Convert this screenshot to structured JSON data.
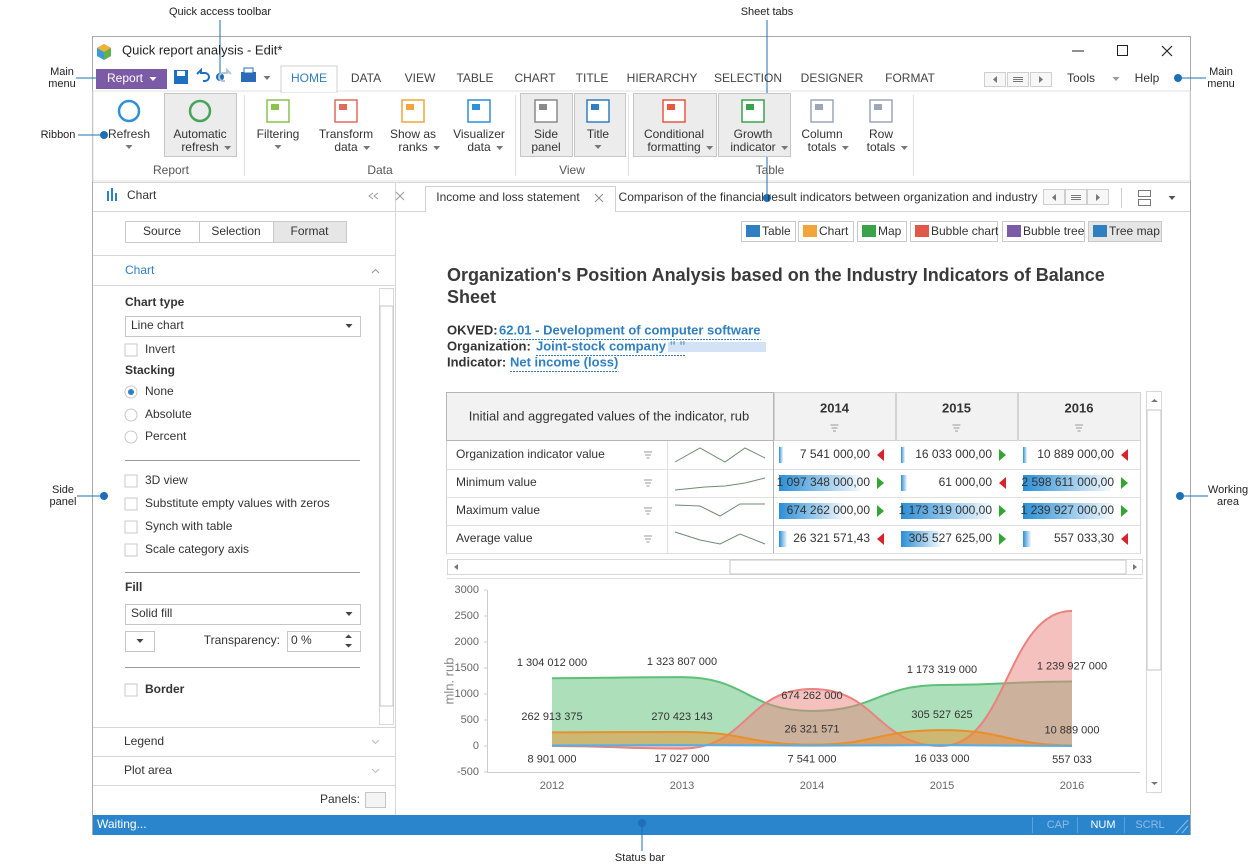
{
  "annotations": [
    {
      "label": [
        "Quick access toolbar"
      ]
    },
    {
      "label": [
        "Sheet tabs"
      ]
    },
    {
      "label": [
        "Main",
        "menu"
      ]
    },
    {
      "label": [
        "Main",
        "menu"
      ]
    },
    {
      "label": [
        "Ribbon"
      ]
    },
    {
      "label": [
        "Side",
        "panel"
      ]
    },
    {
      "label": [
        "Working",
        "area"
      ]
    },
    {
      "label": [
        "Status bar"
      ]
    }
  ],
  "window": {
    "title": "Quick report analysis - Edit*"
  },
  "menu": {
    "main": "Report",
    "tabs": [
      "HOME",
      "DATA",
      "VIEW",
      "TABLE",
      "CHART",
      "TITLE",
      "HIERARCHY",
      "SELECTION",
      "DESIGNER",
      "FORMAT"
    ],
    "tools": "Tools",
    "help": "Help"
  },
  "ribbon": {
    "groups": [
      {
        "label": "Report",
        "buttons": [
          [
            "Refresh"
          ],
          [
            "Automatic",
            "refresh"
          ]
        ]
      },
      {
        "label": "Data",
        "buttons": [
          [
            "Filtering"
          ],
          [
            "Transform",
            "data"
          ],
          [
            "Show as",
            "ranks"
          ],
          [
            "Visualizer",
            "data"
          ]
        ]
      },
      {
        "label": "View",
        "buttons": [
          [
            "Side",
            "panel"
          ],
          [
            "Title"
          ]
        ]
      },
      {
        "label": "Table",
        "buttons": [
          [
            "Conditional",
            "formatting"
          ],
          [
            "Growth",
            "indicator"
          ],
          [
            "Column",
            "totals"
          ],
          [
            "Row",
            "totals"
          ]
        ]
      }
    ]
  },
  "side_panel": {
    "title": "Chart",
    "tabs": [
      "Source",
      "Selection",
      "Format"
    ],
    "section": "Chart",
    "chart_type_label": "Chart type",
    "chart_type": "Line chart",
    "invert": "Invert",
    "stacking_label": "Stacking",
    "stacking": [
      "None",
      "Absolute",
      "Percent"
    ],
    "options": [
      "3D view",
      "Substitute empty values with zeros",
      "Synch with table",
      "Scale category axis"
    ],
    "fill_label": "Fill",
    "fill": "Solid fill",
    "transparency_label": "Transparency:",
    "transparency": "0 %",
    "border": "Border",
    "sections": [
      "Legend",
      "Plot area"
    ],
    "panels": "Panels:"
  },
  "sheet_tabs": [
    "Income and loss statement",
    "Comparison of the financial result indicators between organization and industry"
  ],
  "views": [
    "Table",
    "Chart",
    "Map",
    "Bubble chart",
    "Bubble tree",
    "Tree map"
  ],
  "report": {
    "title": [
      "Organization's Position Analysis based on the Industry Indicators of Balance",
      "Sheet"
    ],
    "fields": [
      {
        "label": "OKVED:",
        "value": "62.01 - Development of computer software"
      },
      {
        "label": "Organization:",
        "value": "Joint-stock company \"                \""
      },
      {
        "label": "Indicator:",
        "value": "Net income (loss)"
      }
    ]
  },
  "table": {
    "header": "Initial and aggregated values of the indicator, rub",
    "columns": [
      "2014",
      "2015",
      "2016"
    ],
    "rows": [
      [
        "Organization indicator value",
        "7 541 000,00",
        "16 033 000,00",
        "10 889 000,00"
      ],
      [
        "Minimum value",
        "1 097 348 000,00",
        "61 000,00",
        "2 598 611 000,00"
      ],
      [
        "Maximum value",
        "674 262 000,00",
        "1 173 319 000,00",
        "1 239 927 000,00"
      ],
      [
        "Average value",
        "26 321 571,43",
        "305 527 625,00",
        "557 033,30"
      ]
    ]
  },
  "chart_data": {
    "type": "area",
    "y_label": "mln. rub",
    "categories": [
      "2012",
      "2013",
      "2014",
      "2015",
      "2016"
    ],
    "ylim": [
      -500,
      3000
    ],
    "yticks": [
      -500,
      0,
      500,
      1000,
      1500,
      2000,
      2500,
      3000
    ],
    "grid": false,
    "series": [
      {
        "color": "#5dbf78",
        "values": [
          1304.012,
          1323.807,
          674.262,
          1173.319,
          1239.927
        ],
        "value_labels": [
          "1 304 012 000",
          "1 323 807 000",
          "674 262 000",
          "1 173 319 000",
          "1 239 927 000"
        ]
      },
      {
        "color": "#e98f2c",
        "values": [
          262.913375,
          270.423143,
          26.321571,
          305.527625,
          10.889
        ],
        "value_labels": [
          "262 913 375",
          "270 423 143",
          "26 321 571",
          "305 527 625",
          "10 889 000"
        ]
      },
      {
        "color": "#55aee8",
        "values": [
          8.901,
          17.027,
          7.541,
          16.033,
          0.557033
        ],
        "value_labels": [
          "8 901 000",
          "17 027 000",
          "7 541 000",
          "16 033 000",
          "557 033"
        ]
      },
      {
        "color": "#e9837e",
        "values": [
          0,
          -50,
          1097.348,
          0.061,
          2598.611
        ]
      }
    ]
  },
  "status": {
    "text": "Waiting...",
    "indicators": [
      "CAP",
      "NUM",
      "SCRL"
    ]
  }
}
